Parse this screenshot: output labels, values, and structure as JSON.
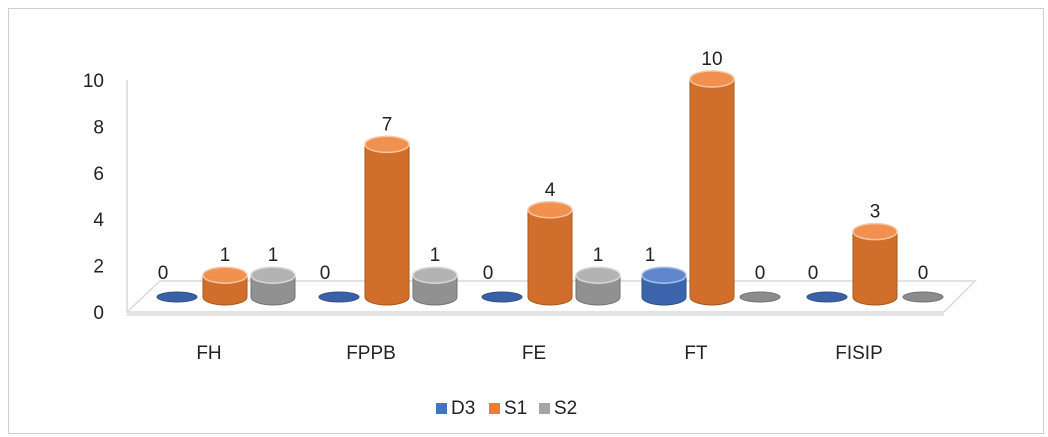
{
  "chart_data": {
    "type": "bar",
    "categories": [
      "FH",
      "FPPB",
      "FE",
      "FT",
      "FISIP"
    ],
    "series": [
      {
        "name": "D3",
        "values": [
          0,
          0,
          0,
          1,
          0
        ],
        "color": "#4472C4"
      },
      {
        "name": "S1",
        "values": [
          1,
          7,
          4,
          10,
          3
        ],
        "color": "#ED7D31"
      },
      {
        "name": "S2",
        "values": [
          1,
          1,
          1,
          0,
          0
        ],
        "color": "#A5A5A5"
      }
    ],
    "ylim": [
      0,
      10
    ],
    "yticks": [
      0,
      2,
      4,
      6,
      8,
      10
    ],
    "legend_position": "bottom",
    "grid": false
  }
}
